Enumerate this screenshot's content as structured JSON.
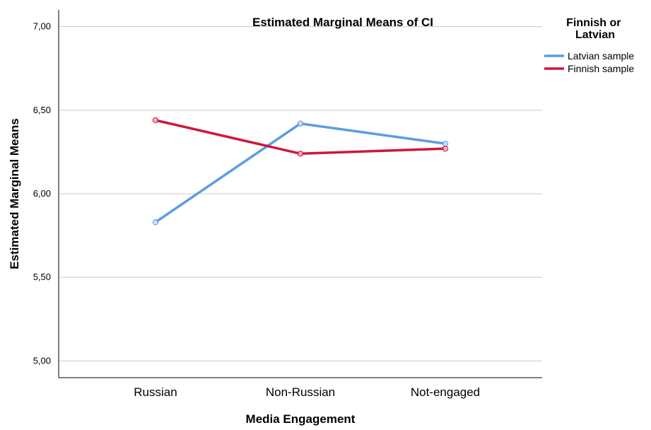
{
  "chart_data": {
    "type": "line",
    "title": "Estimated Marginal Means of CI",
    "xlabel": "Media Engagement",
    "ylabel": "Estimated Marginal Means",
    "categories": [
      "Russian",
      "Non-Russian",
      "Not-engaged"
    ],
    "ylim": [
      4.9,
      7.1
    ],
    "yticks": [
      5.0,
      5.5,
      6.0,
      6.5,
      7.0
    ],
    "ytick_labels": [
      "5,00",
      "5,50",
      "6,00",
      "6,50",
      "7,00"
    ],
    "grid": true,
    "legend": {
      "title": "Finnish or Latvian",
      "title_lines": [
        "Finnish or",
        "Latvian"
      ],
      "position": "right"
    },
    "series": [
      {
        "name": "Latvian sample",
        "color": "#5b9de1",
        "values": [
          5.83,
          6.42,
          6.3
        ]
      },
      {
        "name": "Finnish sample",
        "color": "#d0163c",
        "values": [
          6.44,
          6.24,
          6.27
        ]
      }
    ]
  }
}
